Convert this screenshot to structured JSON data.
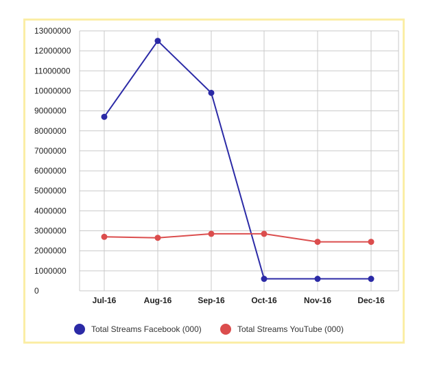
{
  "chart_data": {
    "type": "line",
    "title": "",
    "xlabel": "",
    "ylabel": "",
    "categories": [
      "Jul-16",
      "Aug-16",
      "Sep-16",
      "Oct-16",
      "Nov-16",
      "Dec-16"
    ],
    "ylim": [
      0,
      13000000
    ],
    "yticks": [
      "0",
      "1000000",
      "2000000",
      "3000000",
      "4000000",
      "5000000",
      "6000000",
      "7000000",
      "8000000",
      "9000000",
      "10000000",
      "11000000",
      "12000000",
      "13000000"
    ],
    "grid": true,
    "legend_position": "bottom",
    "series": [
      {
        "name": "Total Streams Facebook (000)",
        "color": "#2b2aa6",
        "values": [
          8700000,
          12500000,
          9900000,
          600000,
          600000,
          600000
        ]
      },
      {
        "name": "Total Streams YouTube (000)",
        "color": "#db4d4d",
        "values": [
          2700000,
          2650000,
          2850000,
          2850000,
          2450000,
          2450000
        ]
      }
    ]
  }
}
